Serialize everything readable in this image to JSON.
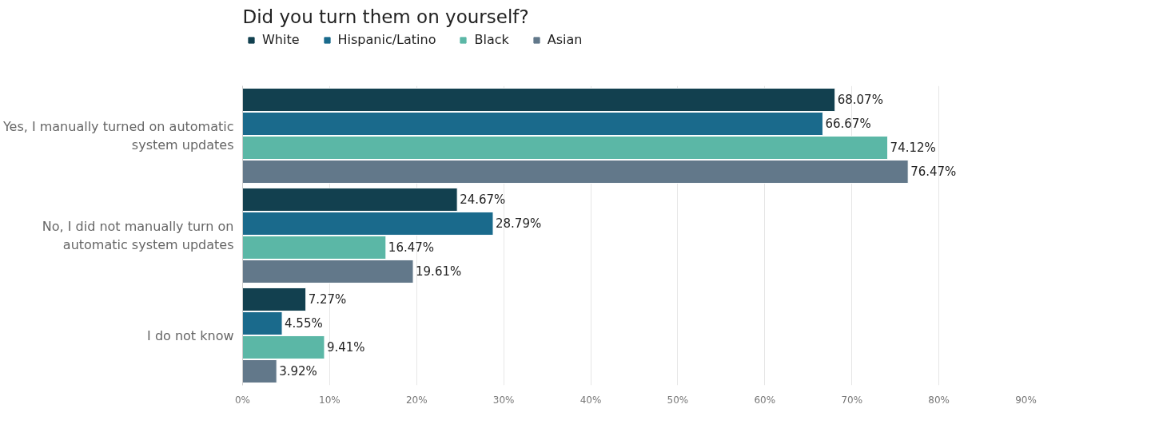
{
  "chart_data": {
    "type": "bar",
    "orientation": "horizontal",
    "title": "Did you turn them on yourself?",
    "categories": [
      "Yes, I manually turned on automatic system updates",
      "No, I did not manually turn on automatic system updates",
      "I do not know"
    ],
    "series": [
      {
        "name": "White",
        "color": "#12404f",
        "values": [
          68.07,
          24.67,
          7.27
        ],
        "value_labels": [
          "68.07%",
          "24.67%",
          "7.27%"
        ]
      },
      {
        "name": "Hispanic/Latino",
        "color": "#1a6a8c",
        "values": [
          66.67,
          28.79,
          4.55
        ],
        "value_labels": [
          "66.67%",
          "28.79%",
          "4.55%"
        ]
      },
      {
        "name": "Black",
        "color": "#5bb7a6",
        "values": [
          74.12,
          16.47,
          9.41
        ],
        "value_labels": [
          "74.12%",
          "16.47%",
          "9.41%"
        ]
      },
      {
        "name": "Asian",
        "color": "#62788a",
        "values": [
          76.47,
          19.61,
          3.92
        ],
        "value_labels": [
          "76.47%",
          "19.61%",
          "3.92%"
        ]
      }
    ],
    "xlim": [
      0,
      90
    ],
    "xticks": [
      {
        "value": 0,
        "label": "0%"
      },
      {
        "value": 10,
        "label": "10%"
      },
      {
        "value": 20,
        "label": "20%"
      },
      {
        "value": 30,
        "label": "30%"
      },
      {
        "value": 40,
        "label": "40%"
      },
      {
        "value": 50,
        "label": "50%"
      },
      {
        "value": 60,
        "label": "60%"
      },
      {
        "value": 70,
        "label": "70%"
      },
      {
        "value": 80,
        "label": "80%"
      },
      {
        "value": 90,
        "label": "90%"
      }
    ],
    "grid": "x",
    "legend": "top left"
  }
}
